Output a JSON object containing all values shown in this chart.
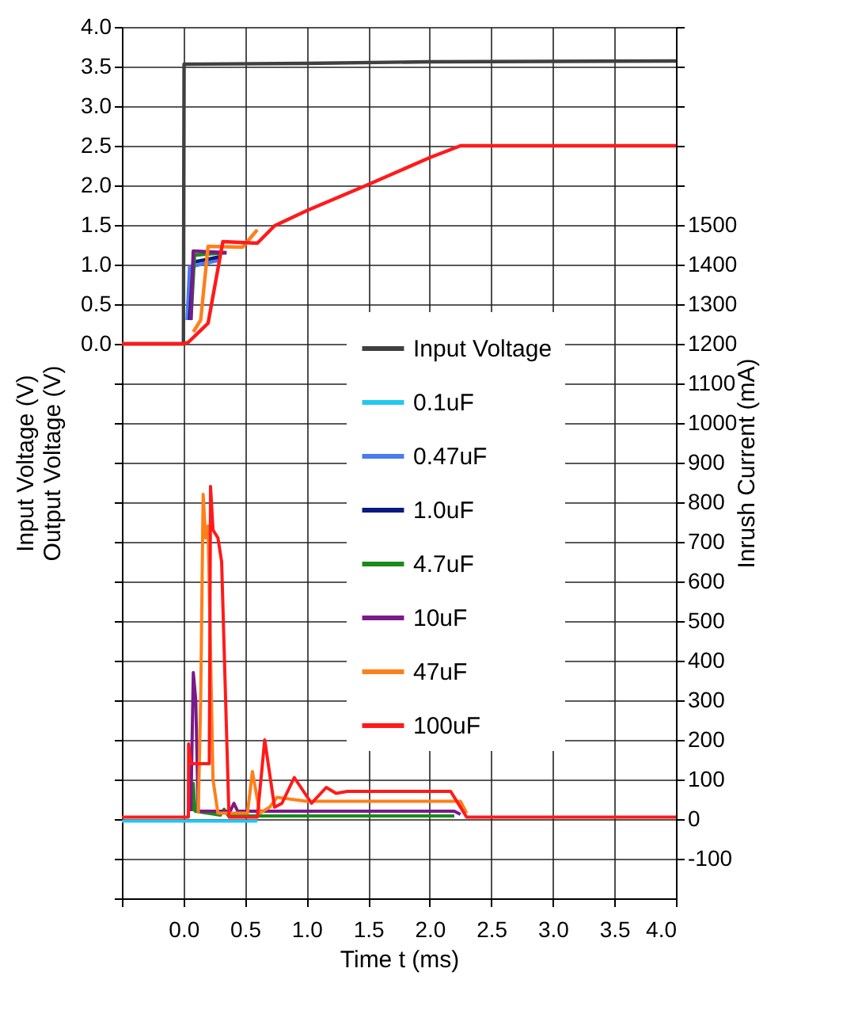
{
  "chart_data": {
    "type": "line",
    "xlabel": "Time t (ms)",
    "ylabel": "Input Voltage (V)\nOutput Voltage (V)",
    "y2label": "Inrush Current (mA)",
    "xlim": [
      -0.5,
      4.0
    ],
    "xticks": [
      {
        "value": -0.5,
        "label": null
      },
      {
        "value": 0,
        "label": "0.0"
      },
      {
        "value": 0.5,
        "label": "0.5"
      },
      {
        "value": 1,
        "label": "1.0"
      },
      {
        "value": 1.5,
        "label": "1.5"
      },
      {
        "value": 2,
        "label": "2.0"
      },
      {
        "value": 2.5,
        "label": "2.5"
      },
      {
        "value": 3,
        "label": "3.0"
      },
      {
        "value": 3.5,
        "label": "3.5"
      },
      {
        "value": 4,
        "label": "4.0"
      }
    ],
    "ylim": [
      -7.0,
      4.0
    ],
    "yticks": [
      {
        "value": -7,
        "label": null
      },
      {
        "value": -6.5,
        "label": null
      },
      {
        "value": -6,
        "label": null
      },
      {
        "value": -5.5,
        "label": null
      },
      {
        "value": -5,
        "label": null
      },
      {
        "value": -4.5,
        "label": null
      },
      {
        "value": -4,
        "label": null
      },
      {
        "value": -3.5,
        "label": null
      },
      {
        "value": -3,
        "label": null
      },
      {
        "value": -2.5,
        "label": null
      },
      {
        "value": -2,
        "label": null
      },
      {
        "value": -1.5,
        "label": null
      },
      {
        "value": -1,
        "label": null
      },
      {
        "value": -0.5,
        "label": null
      },
      {
        "value": 0,
        "label": "0.0"
      },
      {
        "value": 0.5,
        "label": "0.5"
      },
      {
        "value": 1,
        "label": "1.0"
      },
      {
        "value": 1.5,
        "label": "1.5"
      },
      {
        "value": 2,
        "label": "2.0"
      },
      {
        "value": 2.5,
        "label": "2.5"
      },
      {
        "value": 3,
        "label": "3.0"
      },
      {
        "value": 3.5,
        "label": "3.5"
      },
      {
        "value": 4,
        "label": "4.0"
      }
    ],
    "y2lim": [
      -200,
      2000
    ],
    "y2ticks": [
      -100,
      0,
      100,
      200,
      300,
      400,
      500,
      600,
      700,
      800,
      900,
      1000,
      1100,
      1200,
      1300,
      1400,
      1500,
      {
        "value": 1600,
        "label": null
      },
      {
        "value": 1700,
        "label": null
      },
      {
        "value": 1800,
        "label": null
      },
      {
        "value": 1900,
        "label": null
      },
      {
        "value": 2000,
        "label": null
      }
    ],
    "grid": true,
    "legend": "center",
    "series": [
      {
        "name": "Input Voltage",
        "color": "#404040",
        "x": [
          -0.5,
          0,
          0.005,
          1.0,
          2.0,
          4.0
        ],
        "values": [
          0,
          0,
          3.53,
          3.54,
          3.56,
          3.57
        ]
      },
      {
        "name": "0.1uF",
        "color": "#22c8f0",
        "axis": "y2",
        "x": [
          -0.5,
          0.6
        ],
        "values": [
          -5,
          -5
        ]
      },
      {
        "name": "0.47uF",
        "color": "#4a7cf0",
        "x": [
          0.03,
          0.05,
          0.3
        ],
        "values": [
          0.3,
          0.97,
          1.06
        ]
      },
      {
        "name": "1.0uF",
        "color": "#0a1a80",
        "x": [
          0.05,
          0.08,
          0.3
        ],
        "values": [
          0.3,
          1.03,
          1.1
        ]
      },
      {
        "name": "4.7uF",
        "color": "#1a8a1a",
        "x": [
          0.06,
          0.09,
          0.35
        ],
        "values": [
          0.3,
          1.12,
          1.15
        ]
      },
      {
        "name": "10uF",
        "color": "#7a1a8a",
        "x": [
          0.06,
          0.08,
          0.35
        ],
        "values": [
          0.3,
          1.17,
          1.15
        ]
      },
      {
        "name": "47uF",
        "color": "#ff7f1a",
        "x": [
          0.08,
          0.14,
          0.2,
          0.48,
          0.6
        ],
        "values": [
          0.15,
          0.3,
          1.23,
          1.22,
          1.44
        ]
      },
      {
        "name": "100uF",
        "color": "#ff1a1a",
        "x": [
          -0.5,
          0,
          0.04,
          0.2,
          0.32,
          0.6,
          0.74,
          1.0,
          1.5,
          2.0,
          2.25,
          2.5,
          4.0
        ],
        "values": [
          0,
          0,
          0.02,
          0.26,
          1.29,
          1.27,
          1.49,
          1.68,
          2.01,
          2.35,
          2.5,
          2.5,
          2.5
        ]
      },
      {
        "color": "#1a8a1a",
        "axis": "y2",
        "x": [
          0.07,
          0.08,
          0.095,
          0.3,
          0.33,
          0.36,
          0.5,
          2.2
        ],
        "values": [
          20,
          90,
          20,
          10,
          25,
          10,
          8,
          8
        ]
      },
      {
        "color": "#7a1a8a",
        "axis": "y2",
        "x": [
          0.06,
          0.08,
          0.1,
          0.12,
          0.38,
          0.41,
          0.44,
          0.5,
          2.2,
          2.25
        ],
        "values": [
          20,
          370,
          300,
          20,
          20,
          40,
          20,
          20,
          20,
          12
        ]
      },
      {
        "color": "#ff7f1a",
        "axis": "y2",
        "x": [
          0.12,
          0.14,
          0.16,
          0.18,
          0.2,
          0.24,
          0.28,
          0.52,
          0.56,
          0.62,
          0.7,
          0.76,
          1.0,
          2.25,
          2.3
        ],
        "values": [
          15,
          300,
          820,
          710,
          740,
          100,
          15,
          15,
          120,
          15,
          30,
          55,
          45,
          45,
          15
        ]
      },
      {
        "color": "#ff1a1a",
        "axis": "y2",
        "x": [
          -0.5,
          0.04,
          0.042,
          0.06,
          0.21,
          0.22,
          0.24,
          0.28,
          0.31,
          0.37,
          0.6,
          0.66,
          0.74,
          0.8,
          0.9,
          1.04,
          1.16,
          1.24,
          1.33,
          2.17,
          2.3,
          4.0
        ],
        "values": [
          5,
          5,
          190,
          140,
          140,
          840,
          730,
          710,
          650,
          5,
          5,
          200,
          30,
          40,
          105,
          40,
          80,
          65,
          70,
          70,
          5,
          5
        ]
      }
    ]
  }
}
